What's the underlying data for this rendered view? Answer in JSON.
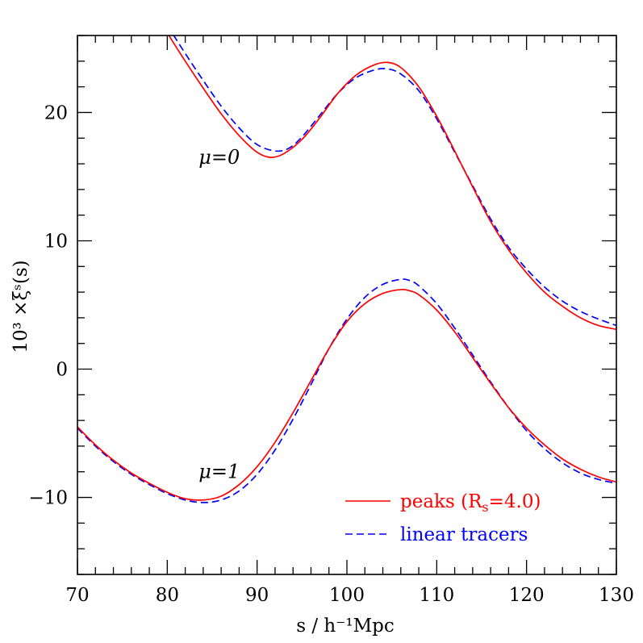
{
  "chart_data": {
    "type": "line",
    "xlabel": "s / h⁻¹Mpc",
    "ylabel": "10³ ×ξˢ(s)",
    "xlim": [
      70,
      130
    ],
    "ylim": [
      -16,
      26
    ],
    "x_ticks": [
      70,
      80,
      90,
      100,
      110,
      120,
      130
    ],
    "x_tick_labels": [
      "70",
      "80",
      "90",
      "100",
      "110",
      "120",
      "130"
    ],
    "y_ticks": [
      -10,
      0,
      10,
      20
    ],
    "y_tick_labels": [
      "−10",
      "0",
      "10",
      "20"
    ],
    "legend_position": "bottom-right",
    "annotations": [
      {
        "text": "μ=0",
        "x": 83.5,
        "y": 16.0
      },
      {
        "text": "μ=1",
        "x": 83.5,
        "y": -8.5
      }
    ],
    "series": [
      {
        "name": "peaks (Rₛ=4.0)",
        "legend_label": "peaks (R",
        "legend_sub": "s",
        "legend_tail": "=4.0)",
        "color": "#ff0000",
        "dash": "solid",
        "curves": [
          {
            "label": "μ=0",
            "x": [
              80,
              82,
              84,
              86,
              88,
              90,
              91.5,
              93,
              95,
              97,
              99,
              101,
              103,
              104.5,
              106,
              108,
              110,
              112,
              114,
              116,
              118,
              120,
              122,
              124,
              126,
              128,
              130
            ],
            "y": [
              26.2,
              24.0,
              21.9,
              19.9,
              18.2,
              16.9,
              16.5,
              16.8,
              17.9,
              19.6,
              21.5,
              22.9,
              23.7,
              23.9,
              23.5,
              22.0,
              19.7,
              17.0,
              14.2,
              11.5,
              9.3,
              7.5,
              6.0,
              4.9,
              4.0,
              3.4,
              3.1
            ]
          },
          {
            "label": "μ=1",
            "x": [
              70,
              72,
              74,
              76,
              78,
              80,
              82,
              84,
              86,
              88,
              90,
              92,
              94,
              96,
              98,
              100,
              102,
              104,
              106,
              107,
              108,
              110,
              112,
              114,
              116,
              118,
              120,
              122,
              124,
              126,
              128,
              130
            ],
            "y": [
              -4.5,
              -5.9,
              -7.1,
              -8.1,
              -8.9,
              -9.6,
              -10.1,
              -10.2,
              -9.9,
              -9.0,
              -7.6,
              -5.7,
              -3.4,
              -0.9,
              1.6,
              3.7,
              5.1,
              5.9,
              6.2,
              6.1,
              5.8,
              4.6,
              2.9,
              0.9,
              -1.1,
              -3.0,
              -4.6,
              -5.9,
              -7.0,
              -7.8,
              -8.4,
              -8.8
            ]
          }
        ]
      },
      {
        "name": "linear tracers",
        "legend_label": "linear tracers",
        "color": "#0000ff",
        "dash": "dashed",
        "curves": [
          {
            "label": "μ=0",
            "x": [
              80,
              82,
              84,
              86,
              88,
              90,
              92,
              93.5,
              95,
              97,
              99,
              101,
              103,
              104.5,
              106,
              108,
              110,
              112,
              114,
              116,
              118,
              120,
              122,
              124,
              126,
              128,
              130
            ],
            "y": [
              26.8,
              24.6,
              22.5,
              20.5,
              18.8,
              17.5,
              17.0,
              17.2,
              18.1,
              19.8,
              21.5,
              22.7,
              23.3,
              23.4,
              23.0,
              21.7,
              19.5,
              16.9,
              14.3,
              11.7,
              9.5,
              7.8,
              6.4,
              5.3,
              4.5,
              3.9,
              3.4
            ]
          },
          {
            "label": "μ=1",
            "x": [
              70,
              72,
              74,
              76,
              78,
              80,
              82,
              84,
              86,
              88,
              90,
              92,
              94,
              96,
              98,
              100,
              102,
              104,
              106,
              107,
              108,
              110,
              112,
              114,
              116,
              118,
              120,
              122,
              124,
              126,
              128,
              130
            ],
            "y": [
              -4.6,
              -6.0,
              -7.2,
              -8.2,
              -9.0,
              -9.7,
              -10.2,
              -10.4,
              -10.2,
              -9.5,
              -8.2,
              -6.3,
              -3.9,
              -1.2,
              1.6,
              3.9,
              5.6,
              6.6,
              7.0,
              6.9,
              6.5,
              5.1,
              3.2,
              1.1,
              -1.0,
              -3.0,
              -4.8,
              -6.2,
              -7.3,
              -8.1,
              -8.6,
              -8.9
            ]
          }
        ]
      }
    ]
  }
}
